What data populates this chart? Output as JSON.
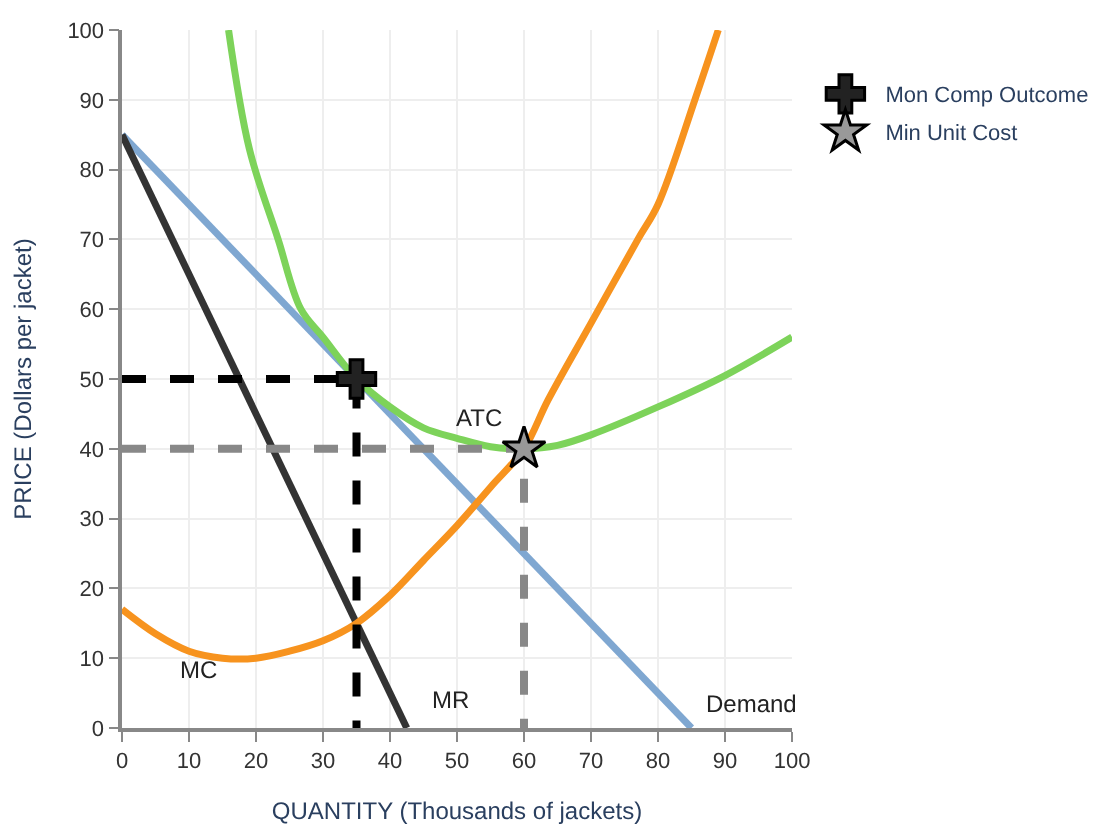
{
  "chart_data": {
    "type": "line",
    "xlabel": "QUANTITY (Thousands of jackets)",
    "ylabel": "PRICE (Dollars per jacket)",
    "xlim": [
      0,
      100
    ],
    "ylim": [
      0,
      100
    ],
    "xticks": [
      0,
      10,
      20,
      30,
      40,
      50,
      60,
      70,
      80,
      90,
      100
    ],
    "yticks": [
      0,
      10,
      20,
      30,
      40,
      50,
      60,
      70,
      80,
      90,
      100
    ],
    "grid": true,
    "legend": "right",
    "series": [
      {
        "color": "#7fa7d1",
        "x": [
          0,
          85
        ],
        "values": [
          85,
          0
        ],
        "marker": "none",
        "line_style": "solid"
      },
      {
        "color": "#333333",
        "x": [
          0,
          42.5
        ],
        "values": [
          85,
          0
        ],
        "marker": "none",
        "line_style": "solid"
      },
      {
        "color": "#f7931e",
        "x": [
          0,
          5,
          10,
          15,
          20,
          25,
          30,
          35,
          40,
          45,
          50,
          55,
          60,
          63.6,
          70,
          77,
          80,
          85.5,
          89
        ],
        "values": [
          17,
          13.5,
          11,
          10,
          10,
          11,
          12.5,
          15,
          19,
          24,
          29,
          34.5,
          40,
          47,
          58,
          70,
          75,
          90,
          100
        ],
        "marker": "none",
        "line_style": "solid"
      },
      {
        "color": "#7dd35a",
        "x": [
          15.9,
          19,
          23.3,
          26.7,
          30,
          35,
          40,
          45,
          50,
          55,
          60,
          65,
          70,
          80,
          90,
          100
        ],
        "values": [
          100,
          83,
          70,
          60,
          56,
          50,
          46,
          43,
          41.5,
          40.3,
          40,
          40.5,
          42,
          46,
          50.5,
          56
        ],
        "marker": "none",
        "line_style": "solid"
      },
      {
        "color": "#000000",
        "x": [
          0,
          35,
          35
        ],
        "values": [
          50,
          50,
          0
        ],
        "marker": "none",
        "line_style": "dashed"
      },
      {
        "color": "#888888",
        "x": [
          0,
          60,
          60
        ],
        "values": [
          40,
          40,
          0
        ],
        "marker": "none",
        "line_style": "dashed"
      },
      {
        "type": "scatter",
        "name": "Mon Comp Outcome",
        "color": "#222222",
        "x": [
          35
        ],
        "values": [
          50
        ],
        "marker": "cross"
      },
      {
        "type": "scatter",
        "name": "Min Unit Cost",
        "color": "#999999",
        "x": [
          60
        ],
        "values": [
          40
        ],
        "marker": "star"
      }
    ],
    "annotations": [
      {
        "text": "Demand",
        "x": 85,
        "y": 0
      },
      {
        "text": "MR",
        "x": 42.5,
        "y": 0
      },
      {
        "text": "MC",
        "x": 15,
        "y": 10
      },
      {
        "text": "ATC",
        "x": 55,
        "y": 40.3
      }
    ]
  }
}
